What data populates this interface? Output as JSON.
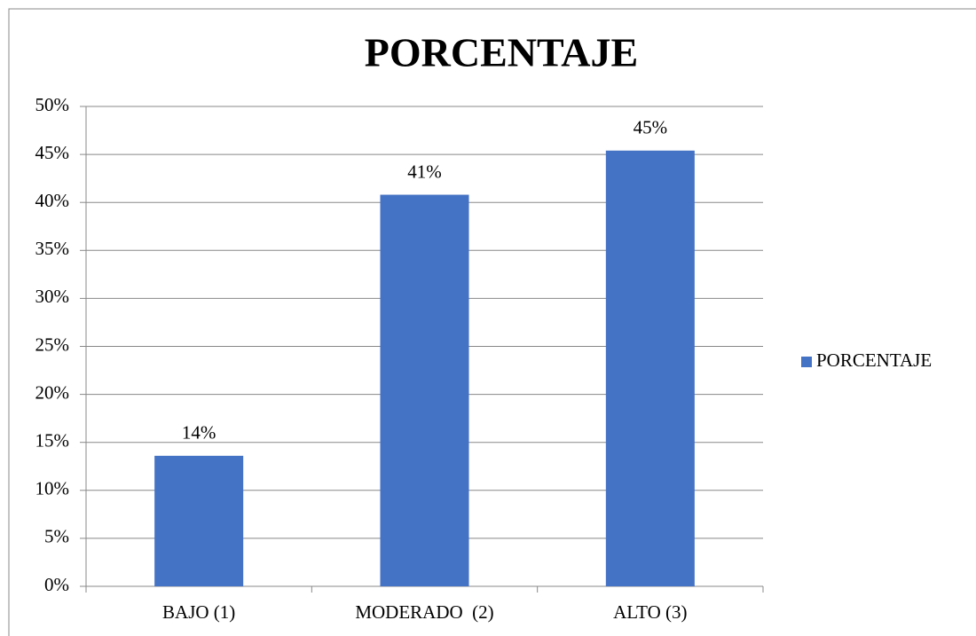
{
  "chart_data": {
    "type": "bar",
    "title": "PORCENTAJE",
    "categories": [
      "BAJO (1)",
      "MODERADO  (2)",
      "ALTO (3)"
    ],
    "series": [
      {
        "name": "PORCENTAJE",
        "color": "#4472c4",
        "values": [
          13.6,
          40.8,
          45.4
        ],
        "value_labels": [
          "14%",
          "41%",
          "45%"
        ]
      }
    ],
    "ylim": [
      0,
      50
    ],
    "yticks": [
      {
        "value": 0,
        "label": "0%"
      },
      {
        "value": 5,
        "label": "5%"
      },
      {
        "value": 10,
        "label": "10%"
      },
      {
        "value": 15,
        "label": "15%"
      },
      {
        "value": 20,
        "label": "20%"
      },
      {
        "value": 25,
        "label": "25%"
      },
      {
        "value": 30,
        "label": "30%"
      },
      {
        "value": 35,
        "label": "35%"
      },
      {
        "value": 40,
        "label": "40%"
      },
      {
        "value": 45,
        "label": "45%"
      },
      {
        "value": 50,
        "label": "50%"
      }
    ],
    "grid": true,
    "legend": "right"
  }
}
